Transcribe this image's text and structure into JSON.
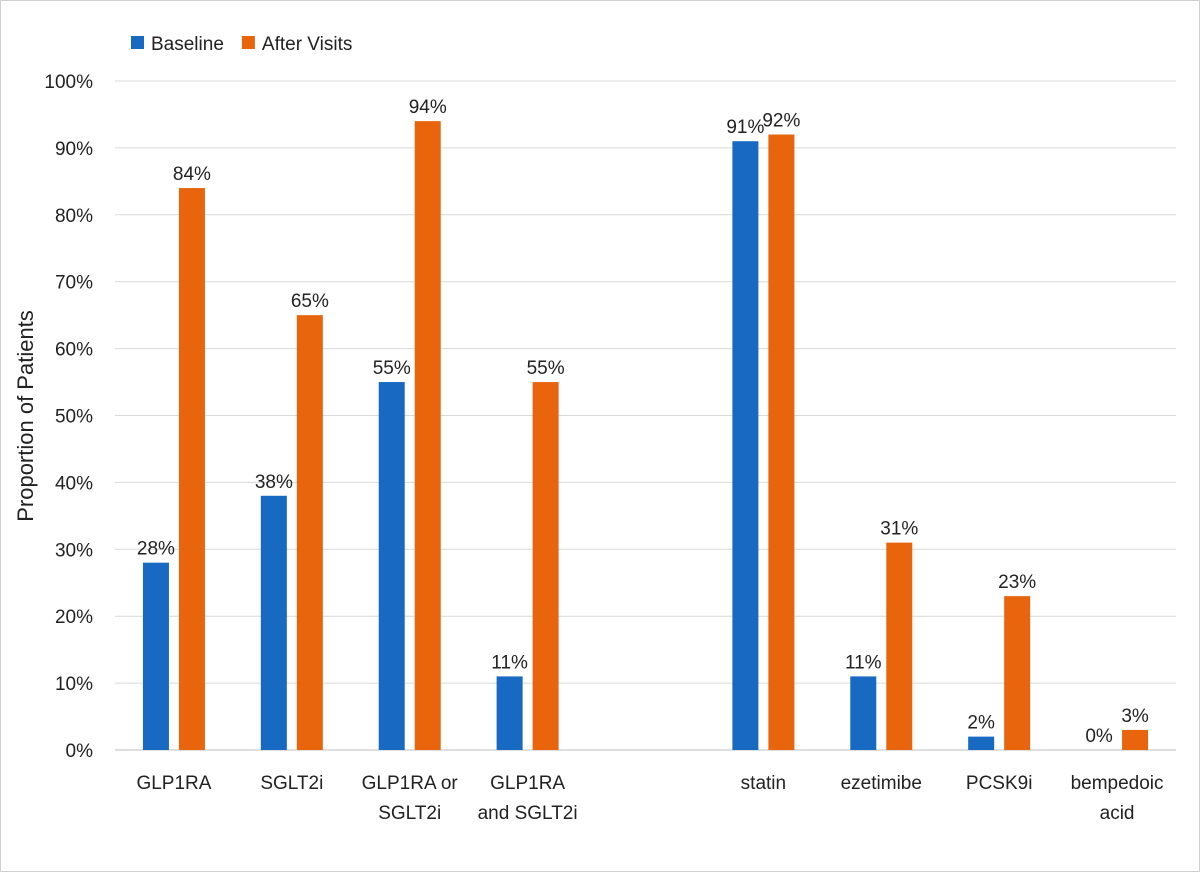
{
  "chart_data": {
    "type": "bar",
    "title": "",
    "xlabel": "",
    "ylabel": "Proportion of Patients",
    "ylim": [
      0,
      100
    ],
    "yticks": [
      "0%",
      "10%",
      "20%",
      "30%",
      "40%",
      "50%",
      "60%",
      "70%",
      "80%",
      "90%",
      "100%"
    ],
    "grid": true,
    "legend": "top-left",
    "categories": [
      [
        "GLP1RA"
      ],
      [
        "SGLT2i"
      ],
      [
        "GLP1RA or",
        "SGLT2i"
      ],
      [
        "GLP1RA",
        "and SGLT2i"
      ],
      [],
      [
        "statin"
      ],
      [
        "ezetimibe"
      ],
      [
        "PCSK9i"
      ],
      [
        "bempedoic",
        "acid"
      ]
    ],
    "series": [
      {
        "name": "Baseline",
        "color": "#1769C2",
        "values": [
          28,
          38,
          55,
          11,
          null,
          91,
          11,
          2,
          0
        ],
        "labels": [
          "28%",
          "38%",
          "55%",
          "11%",
          "",
          "91%",
          "11%",
          "2%",
          "0%"
        ]
      },
      {
        "name": "After Visits",
        "color": "#E8650E",
        "values": [
          84,
          65,
          94,
          55,
          null,
          92,
          31,
          23,
          3
        ],
        "labels": [
          "84%",
          "65%",
          "94%",
          "55%",
          "",
          "92%",
          "31%",
          "23%",
          "3%"
        ]
      }
    ]
  }
}
